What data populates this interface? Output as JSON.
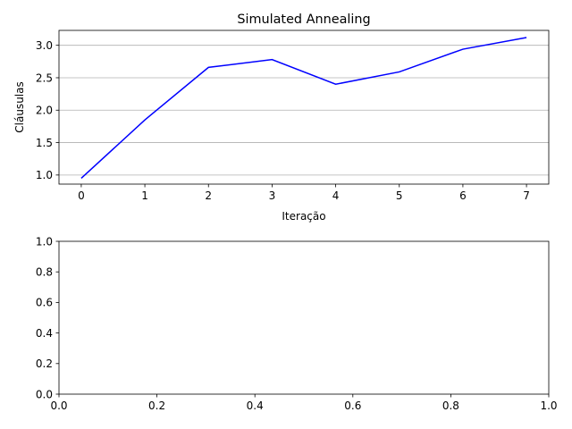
{
  "chart_data": [
    {
      "type": "line",
      "title": "Simulated Annealing",
      "xlabel": "Iteração",
      "ylabel": "Cláusulas",
      "x": [
        0,
        1,
        2,
        3,
        4,
        5,
        6,
        7
      ],
      "series": [
        {
          "values": [
            0.95,
            1.85,
            2.66,
            2.78,
            2.4,
            2.59,
            2.94,
            3.12
          ],
          "color": "#0000ff"
        }
      ],
      "xlim": [
        -0.35,
        7.35
      ],
      "ylim": [
        0.86,
        3.23
      ],
      "xticks": [
        0,
        1,
        2,
        3,
        4,
        5,
        6,
        7
      ],
      "xtick_labels": [
        "0",
        "1",
        "2",
        "3",
        "4",
        "5",
        "6",
        "7"
      ],
      "yticks": [
        1.0,
        1.5,
        2.0,
        2.5,
        3.0
      ],
      "ytick_labels": [
        "1.0",
        "1.5",
        "2.0",
        "2.5",
        "3.0"
      ],
      "grid": "y"
    },
    {
      "type": "line",
      "title": "",
      "xlabel": "",
      "ylabel": "",
      "series": [],
      "xlim": [
        0,
        1
      ],
      "ylim": [
        0,
        1
      ],
      "xticks": [
        0,
        0.2,
        0.4,
        0.6,
        0.8,
        1.0
      ],
      "xtick_labels": [
        "0.0",
        "0.2",
        "0.4",
        "0.6",
        "0.8",
        "1.0"
      ],
      "yticks": [
        0,
        0.2,
        0.4,
        0.6,
        0.8,
        1.0
      ],
      "ytick_labels": [
        "0.0",
        "0.2",
        "0.4",
        "0.6",
        "0.8",
        "1.0"
      ],
      "grid": "none"
    }
  ]
}
